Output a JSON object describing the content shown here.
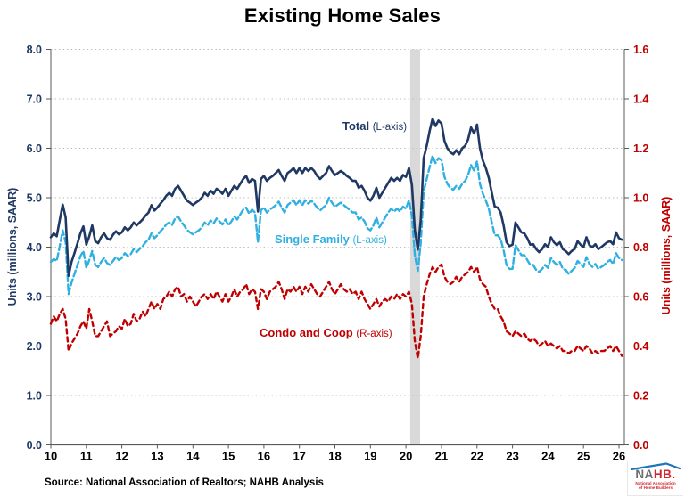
{
  "title": "Existing Home Sales",
  "source_note": "Source: National Association of Realtors; NAHB Analysis",
  "logo": {
    "name_gray": "NA",
    "name_red": "HB.",
    "tagline": "National Association of Home Builders",
    "roof_color": "#1b75bb",
    "gray_color": "#6d6e71",
    "red_color": "#d22730"
  },
  "chart_data": {
    "type": "line",
    "title": "Existing Home Sales",
    "x_start_year": 2010,
    "x_step_months": 1,
    "x_span_years": 16.15,
    "x_tick_labels": [
      "10",
      "11",
      "12",
      "13",
      "14",
      "15",
      "16",
      "17",
      "18",
      "19",
      "20",
      "21",
      "22",
      "23",
      "24",
      "25",
      "26"
    ],
    "grid": true,
    "gridline_color": "#bfbfbf",
    "axis_line_color": "#595959",
    "left_axis": {
      "label": "Units (millions, SAAR)",
      "min": 0,
      "max": 8,
      "tick_interval": 1,
      "tick_labels": [
        "0.0",
        "1.0",
        "2.0",
        "3.0",
        "4.0",
        "5.0",
        "6.0",
        "7.0",
        "8.0"
      ],
      "color": "#1f3864"
    },
    "right_axis": {
      "label": "Units (millions, SAAR)",
      "min": 0,
      "max": 1.6,
      "tick_interval": 0.2,
      "tick_labels": [
        "0.0",
        "0.2",
        "0.4",
        "0.6",
        "0.8",
        "1.0",
        "1.2",
        "1.4",
        "1.6"
      ],
      "color": "#c00000"
    },
    "recession_band": {
      "start_year": 2020.12,
      "end_year": 2020.4,
      "color": "#d9d9d9"
    },
    "series": [
      {
        "name": "Condo and Coop",
        "label": "Condo and Coop",
        "axis_tag": "(R-axis)",
        "axis": "right",
        "color": "#c00000",
        "style": "dashed",
        "dash": "5 4",
        "width": 2.4,
        "values": [
          0.49,
          0.52,
          0.5,
          0.53,
          0.55,
          0.51,
          0.38,
          0.41,
          0.43,
          0.45,
          0.48,
          0.5,
          0.47,
          0.55,
          0.5,
          0.44,
          0.44,
          0.46,
          0.48,
          0.5,
          0.44,
          0.45,
          0.46,
          0.48,
          0.47,
          0.51,
          0.48,
          0.49,
          0.53,
          0.5,
          0.51,
          0.54,
          0.52,
          0.55,
          0.58,
          0.55,
          0.57,
          0.55,
          0.59,
          0.6,
          0.62,
          0.6,
          0.63,
          0.64,
          0.6,
          0.61,
          0.58,
          0.6,
          0.58,
          0.56,
          0.58,
          0.6,
          0.61,
          0.59,
          0.61,
          0.59,
          0.62,
          0.6,
          0.58,
          0.61,
          0.58,
          0.6,
          0.63,
          0.6,
          0.62,
          0.63,
          0.65,
          0.61,
          0.63,
          0.62,
          0.55,
          0.63,
          0.62,
          0.59,
          0.62,
          0.63,
          0.64,
          0.66,
          0.63,
          0.59,
          0.63,
          0.62,
          0.64,
          0.62,
          0.64,
          0.61,
          0.64,
          0.62,
          0.65,
          0.63,
          0.61,
          0.6,
          0.62,
          0.64,
          0.66,
          0.63,
          0.61,
          0.63,
          0.65,
          0.63,
          0.62,
          0.63,
          0.61,
          0.62,
          0.59,
          0.62,
          0.59,
          0.57,
          0.55,
          0.57,
          0.59,
          0.56,
          0.58,
          0.59,
          0.58,
          0.6,
          0.59,
          0.61,
          0.59,
          0.61,
          0.6,
          0.62,
          0.57,
          0.42,
          0.35,
          0.44,
          0.6,
          0.65,
          0.69,
          0.72,
          0.7,
          0.72,
          0.73,
          0.68,
          0.66,
          0.65,
          0.66,
          0.68,
          0.66,
          0.68,
          0.69,
          0.7,
          0.72,
          0.7,
          0.72,
          0.67,
          0.65,
          0.64,
          0.6,
          0.57,
          0.55,
          0.55,
          0.52,
          0.5,
          0.46,
          0.45,
          0.44,
          0.46,
          0.45,
          0.44,
          0.45,
          0.43,
          0.42,
          0.43,
          0.42,
          0.4,
          0.41,
          0.42,
          0.4,
          0.41,
          0.4,
          0.39,
          0.4,
          0.38,
          0.38,
          0.37,
          0.38,
          0.38,
          0.4,
          0.39,
          0.38,
          0.4,
          0.39,
          0.37,
          0.38,
          0.37,
          0.38,
          0.38,
          0.39,
          0.4,
          0.38,
          0.4,
          0.38,
          0.36
        ]
      },
      {
        "name": "Single Family",
        "label": "Single Family",
        "axis_tag": "(L-axis)",
        "axis": "left",
        "color": "#2fb0e0",
        "style": "dashed",
        "dash": "7 3.5",
        "width": 2.4,
        "values": [
          3.7,
          3.76,
          3.72,
          4.02,
          4.34,
          4.1,
          3.05,
          3.28,
          3.46,
          3.64,
          3.82,
          3.92,
          3.58,
          3.74,
          3.92,
          3.64,
          3.6,
          3.7,
          3.78,
          3.68,
          3.64,
          3.72,
          3.8,
          3.74,
          3.78,
          3.88,
          3.82,
          3.86,
          3.96,
          3.9,
          3.96,
          4.02,
          4.1,
          4.15,
          4.28,
          4.18,
          4.24,
          4.32,
          4.38,
          4.46,
          4.5,
          4.45,
          4.58,
          4.62,
          4.52,
          4.44,
          4.35,
          4.3,
          4.26,
          4.3,
          4.34,
          4.4,
          4.5,
          4.44,
          4.54,
          4.48,
          4.58,
          4.52,
          4.46,
          4.56,
          4.44,
          4.52,
          4.62,
          4.56,
          4.66,
          4.76,
          4.8,
          4.68,
          4.76,
          4.7,
          4.1,
          4.75,
          4.8,
          4.7,
          4.76,
          4.8,
          4.85,
          4.92,
          4.8,
          4.7,
          4.85,
          4.9,
          4.95,
          4.85,
          4.95,
          4.85,
          4.95,
          4.88,
          4.94,
          4.88,
          4.8,
          4.74,
          4.8,
          4.85,
          5.0,
          4.9,
          4.82,
          4.86,
          4.9,
          4.85,
          4.8,
          4.75,
          4.7,
          4.7,
          4.56,
          4.6,
          4.52,
          4.38,
          4.34,
          4.44,
          4.6,
          4.4,
          4.5,
          4.6,
          4.7,
          4.78,
          4.72,
          4.78,
          4.72,
          4.82,
          4.78,
          4.95,
          4.64,
          3.84,
          3.52,
          4.08,
          5.12,
          5.38,
          5.62,
          5.85,
          5.7,
          5.8,
          5.76,
          5.42,
          5.28,
          5.2,
          5.16,
          5.24,
          5.18,
          5.28,
          5.34,
          5.46,
          5.66,
          5.55,
          5.74,
          5.28,
          5.08,
          4.94,
          4.78,
          4.5,
          4.24,
          4.24,
          4.16,
          3.94,
          3.64,
          3.56,
          3.56,
          4.04,
          3.94,
          3.84,
          3.84,
          3.74,
          3.64,
          3.64,
          3.54,
          3.5,
          3.56,
          3.64,
          3.58,
          3.78,
          3.7,
          3.64,
          3.7,
          3.56,
          3.54,
          3.46,
          3.52,
          3.58,
          3.72,
          3.66,
          3.6,
          3.8,
          3.66,
          3.6,
          3.66,
          3.56,
          3.6,
          3.64,
          3.7,
          3.74,
          3.66,
          3.88,
          3.78,
          3.74
        ]
      },
      {
        "name": "Total",
        "label": "Total",
        "axis_tag": "(L-axis)",
        "axis": "left",
        "color": "#1f3864",
        "style": "solid",
        "dash": "",
        "width": 2.6,
        "values": [
          4.2,
          4.28,
          4.22,
          4.55,
          4.86,
          4.6,
          3.42,
          3.7,
          3.88,
          4.08,
          4.28,
          4.42,
          4.05,
          4.22,
          4.44,
          4.12,
          4.08,
          4.2,
          4.28,
          4.18,
          4.15,
          4.25,
          4.32,
          4.26,
          4.3,
          4.4,
          4.34,
          4.4,
          4.5,
          4.44,
          4.5,
          4.56,
          4.64,
          4.7,
          4.85,
          4.74,
          4.8,
          4.88,
          4.95,
          5.04,
          5.1,
          5.04,
          5.18,
          5.24,
          5.14,
          5.04,
          4.94,
          4.9,
          4.85,
          4.9,
          4.94,
          5.0,
          5.1,
          5.04,
          5.14,
          5.08,
          5.18,
          5.14,
          5.08,
          5.18,
          5.04,
          5.14,
          5.24,
          5.18,
          5.28,
          5.38,
          5.44,
          5.3,
          5.38,
          5.34,
          4.72,
          5.38,
          5.44,
          5.34,
          5.4,
          5.44,
          5.5,
          5.56,
          5.44,
          5.34,
          5.5,
          5.54,
          5.6,
          5.5,
          5.6,
          5.5,
          5.6,
          5.54,
          5.6,
          5.54,
          5.44,
          5.38,
          5.44,
          5.5,
          5.64,
          5.54,
          5.46,
          5.5,
          5.54,
          5.5,
          5.44,
          5.4,
          5.34,
          5.34,
          5.2,
          5.24,
          5.14,
          5.0,
          4.94,
          5.04,
          5.2,
          5.0,
          5.1,
          5.2,
          5.3,
          5.4,
          5.34,
          5.4,
          5.34,
          5.46,
          5.42,
          5.6,
          5.26,
          4.35,
          3.95,
          4.55,
          5.8,
          6.05,
          6.35,
          6.6,
          6.45,
          6.56,
          6.5,
          6.15,
          6.0,
          5.92,
          5.88,
          5.96,
          5.88,
          6.0,
          6.05,
          6.18,
          6.42,
          6.3,
          6.48,
          6.0,
          5.75,
          5.6,
          5.4,
          5.1,
          4.82,
          4.8,
          4.7,
          4.44,
          4.1,
          4.02,
          4.05,
          4.5,
          4.4,
          4.3,
          4.28,
          4.18,
          4.05,
          4.06,
          3.96,
          3.9,
          3.96,
          4.06,
          4.0,
          4.2,
          4.1,
          4.04,
          4.1,
          3.96,
          3.92,
          3.86,
          3.92,
          3.96,
          4.12,
          4.05,
          4.0,
          4.2,
          4.04,
          4.0,
          4.06,
          3.96,
          4.0,
          4.05,
          4.1,
          4.12,
          4.06,
          4.3,
          4.18,
          4.15
        ]
      }
    ]
  }
}
